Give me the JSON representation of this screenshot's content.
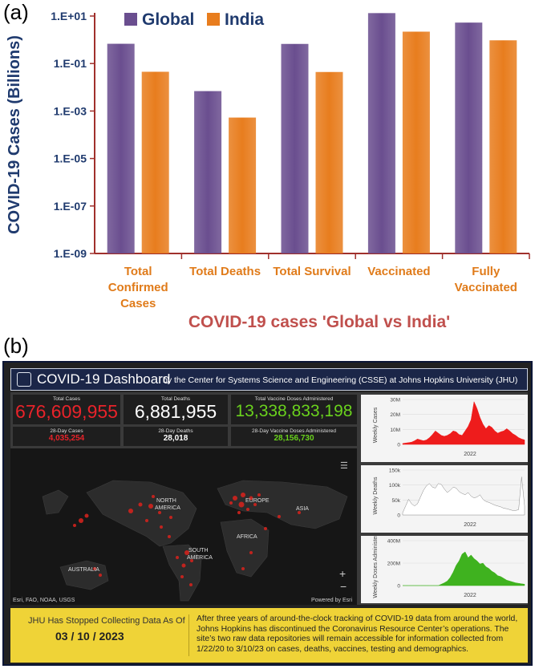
{
  "panel_a_label": "(a)",
  "panel_b_label": "(b)",
  "chart_data": {
    "type": "bar",
    "title": "",
    "xlabel": "COVID-19 cases 'Global vs India'",
    "ylabel": "COVID-19 Cases (Billions)",
    "yscale": "log",
    "ylim": [
      1e-09,
      10
    ],
    "ytick_labels": [
      "1.E+01",
      "1.E-01",
      "1.E-03",
      "1.E-05",
      "1.E-07",
      "1.E-09"
    ],
    "categories": [
      "Total Confirmed Cases",
      "Total Deaths",
      "Total Survival",
      "Vaccinated",
      "Fully Vaccinated"
    ],
    "category_labels": [
      [
        "Total",
        "Confirmed",
        "Cases"
      ],
      [
        "Total Deaths"
      ],
      [
        "Total Survival"
      ],
      [
        "Vaccinated"
      ],
      [
        "Fully",
        "Vaccinated"
      ]
    ],
    "series": [
      {
        "name": "Global",
        "color": "#6a4e8f",
        "values": [
          0.68,
          0.0069,
          0.67,
          13.3,
          5.3
        ]
      },
      {
        "name": "India",
        "color": "#e87d1e",
        "values": [
          0.045,
          0.00053,
          0.044,
          2.2,
          0.95
        ]
      }
    ],
    "legend_position": "top",
    "grid": false
  },
  "dashboard": {
    "title": "COVID-19 Dashboard",
    "subtitle": "by the Center for Systems Science and Engineering (CSSE) at Johns Hopkins University (JHU)",
    "stats": [
      {
        "label": "Total Cases",
        "value": "676,609,955",
        "color": "#e8232a"
      },
      {
        "label": "Total Deaths",
        "value": "6,881,955",
        "color": "#ffffff"
      },
      {
        "label": "Total Vaccine Doses Administered",
        "value": "13,338,833,198",
        "color": "#6ad21d"
      }
    ],
    "sub_stats": [
      {
        "label": "28-Day Cases",
        "value": "4,035,254",
        "color": "#e8232a"
      },
      {
        "label": "28-Day Deaths",
        "value": "28,018",
        "color": "#ffffff"
      },
      {
        "label": "28-Day Vaccine Doses Administered",
        "value": "28,156,730",
        "color": "#6ad21d"
      }
    ],
    "map": {
      "labels": [
        "NORTH",
        "AMERICA",
        "EUROPE",
        "ASIA",
        "AFRICA",
        "SOUTH",
        "AMERICA",
        "AUSTRALIA"
      ],
      "credit_left": "Esri, FAO, NOAA, USGS",
      "credit_right": "Powered by Esri"
    },
    "mini_charts": [
      {
        "ylabel": "Weekly Cases",
        "ticks": [
          "30M",
          "20M",
          "10M",
          "0"
        ],
        "xlabel": "2022",
        "color": "#ee1c1c"
      },
      {
        "ylabel": "Weekly Deaths",
        "ticks": [
          "150k",
          "100k",
          "50k",
          "0"
        ],
        "xlabel": "2022",
        "color": "#ffffff"
      },
      {
        "ylabel": "Weekly Doses Administer",
        "ticks": [
          "400M",
          "200M",
          "0"
        ],
        "xlabel": "2022",
        "color": "#3fb21f"
      }
    ],
    "notice": {
      "left_line": "JHU Has Stopped Collecting Data As Of",
      "date": "03 / 10 / 2023",
      "right_text": "After three years of around-the-clock tracking of COVID-19 data from around the world, Johns Hopkins has discontinued the Coronavirus Resource Center’s operations. The site’s two raw data repositories will remain accessible for information collected from 1/22/20 to 3/10/23 on cases, deaths, vaccines, testing and demographics."
    }
  }
}
